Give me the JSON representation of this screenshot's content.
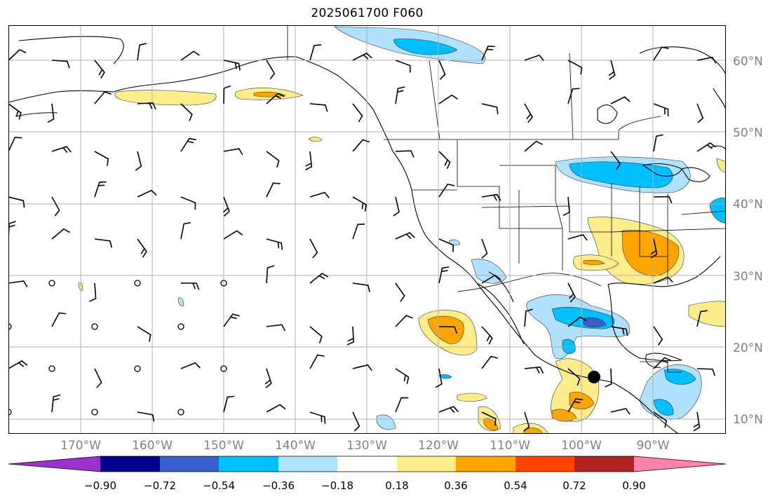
{
  "title": "2025061700 F060",
  "lon_labels": [
    "170°W",
    "160°W",
    "150°W",
    "140°W",
    "130°W",
    "120°W",
    "110°W",
    "100°W",
    "90°W"
  ],
  "lat_labels": [
    "60°N",
    "50°N",
    "40°N",
    "30°N",
    "20°N",
    "10°N"
  ],
  "colorbar": {
    "tick_labels": [
      "−0.90",
      "−0.72",
      "−0.54",
      "−0.36",
      "−0.18",
      "0.18",
      "0.36",
      "0.54",
      "0.72",
      "0.90"
    ],
    "colors": [
      "#9a32cd",
      "#00008b",
      "#3a5fcd",
      "#00bfff",
      "#b0e2ff",
      "#ffffff",
      "#ffec8b",
      "#ffa500",
      "#ff4500",
      "#b22222",
      "#ff82ab"
    ]
  }
}
